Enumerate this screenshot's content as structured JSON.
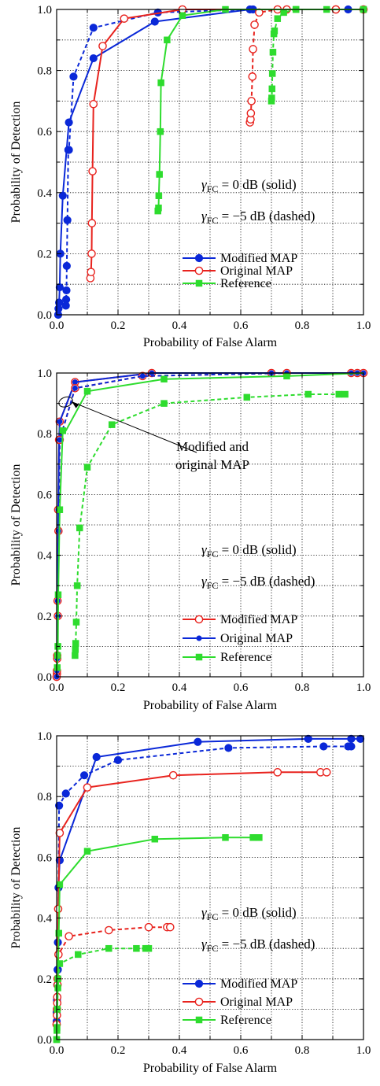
{
  "chart_data": [
    {
      "type": "line",
      "xlabel": "Probability of False Alarm",
      "ylabel": "Probability of Detection",
      "xlim": [
        0,
        1
      ],
      "ylim": [
        0,
        1
      ],
      "xticks": [
        "0.0",
        "0.2",
        "0.4",
        "0.6",
        "0.8",
        "1.0"
      ],
      "yticks": [
        "0.0",
        "0.2",
        "0.4",
        "0.6",
        "0.8",
        "1.0"
      ],
      "grid": true,
      "legend_position": "bottom-right",
      "legend": [
        {
          "name": "Modified MAP",
          "color": "#0a28d8",
          "marker": "filled-circle"
        },
        {
          "name": "Original MAP",
          "color": "#e8231e",
          "marker": "open-circle"
        },
        {
          "name": "Reference",
          "color": "#2edc2e",
          "marker": "filled-square"
        }
      ],
      "notes": [
        {
          "sym": "γ",
          "sub": "FC",
          "rest": " = 0 dB (solid)"
        },
        {
          "sym": "γ",
          "sub": "FC",
          "rest": " = −5 dB (dashed)"
        }
      ],
      "annotation": null,
      "series": [
        {
          "legend": 0,
          "dash": false,
          "x": [
            0.005,
            0.006,
            0.008,
            0.01,
            0.012,
            0.02,
            0.04,
            0.12,
            0.32,
            0.63,
            1.0
          ],
          "y": [
            0.0,
            0.02,
            0.04,
            0.09,
            0.2,
            0.39,
            0.63,
            0.84,
            0.96,
            1.0,
            1.0
          ]
        },
        {
          "legend": 0,
          "dash": true,
          "x": [
            0.03,
            0.031,
            0.032,
            0.033,
            0.035,
            0.038,
            0.04,
            0.055,
            0.12,
            0.33,
            0.64,
            0.95,
            1.0
          ],
          "y": [
            0.03,
            0.05,
            0.08,
            0.16,
            0.31,
            0.54,
            0.54,
            0.78,
            0.94,
            0.99,
            1.0,
            1.0,
            1.0
          ]
        },
        {
          "legend": 1,
          "dash": false,
          "x": [
            0.11,
            0.112,
            0.114,
            0.115,
            0.117,
            0.12,
            0.15,
            0.22,
            0.41,
            0.75,
            0.91,
            1.0
          ],
          "y": [
            0.12,
            0.14,
            0.2,
            0.3,
            0.47,
            0.69,
            0.88,
            0.97,
            1.0,
            1.0,
            1.0,
            1.0
          ]
        },
        {
          "legend": 1,
          "dash": true,
          "x": [
            0.63,
            0.632,
            0.633,
            0.635,
            0.638,
            0.64,
            0.645,
            0.66,
            0.72,
            0.91
          ],
          "y": [
            0.63,
            0.64,
            0.66,
            0.7,
            0.78,
            0.87,
            0.95,
            0.99,
            1.0,
            1.0
          ]
        },
        {
          "legend": 2,
          "dash": false,
          "x": [
            0.33,
            0.332,
            0.333,
            0.335,
            0.338,
            0.34,
            0.36,
            0.41,
            0.55,
            0.78,
            1.0
          ],
          "y": [
            0.34,
            0.35,
            0.39,
            0.46,
            0.6,
            0.76,
            0.9,
            0.98,
            1.0,
            1.0,
            1.0
          ]
        },
        {
          "legend": 2,
          "dash": true,
          "x": [
            0.7,
            0.701,
            0.702,
            0.703,
            0.705,
            0.708,
            0.71,
            0.72,
            0.74,
            0.78,
            0.88,
            1.0
          ],
          "y": [
            0.7,
            0.71,
            0.74,
            0.79,
            0.86,
            0.92,
            0.93,
            0.97,
            0.99,
            1.0,
            1.0,
            1.0
          ]
        }
      ]
    },
    {
      "type": "line",
      "xlabel": "Probability of False Alarm",
      "ylabel": "Probability of Detection",
      "xlim": [
        0,
        1
      ],
      "ylim": [
        0,
        1
      ],
      "xticks": [
        "0.0",
        "0.2",
        "0.4",
        "0.6",
        "0.8",
        "1.0"
      ],
      "yticks": [
        "0.0",
        "0.2",
        "0.4",
        "0.6",
        "0.8",
        "1.0"
      ],
      "grid": true,
      "legend_position": "bottom-right",
      "legend": [
        {
          "name": "Modified MAP",
          "color": "#e8231e",
          "marker": "open-circle"
        },
        {
          "name": "Original MAP",
          "color": "#0a28d8",
          "marker": "small-filled-circle"
        },
        {
          "name": "Reference",
          "color": "#2edc2e",
          "marker": "filled-square"
        }
      ],
      "notes": [
        {
          "sym": "γ",
          "sub": "FC",
          "rest": " = 0 dB (solid)"
        },
        {
          "sym": "γ",
          "sub": "FC",
          "rest": " = −5 dB (dashed)"
        }
      ],
      "annotation": {
        "lines": [
          "Modified and",
          "original MAP"
        ],
        "target": [
          0.045,
          0.91
        ]
      },
      "series": [
        {
          "legend": 0,
          "dash": false,
          "x": [
            0.0,
            0.001,
            0.002,
            0.003,
            0.005,
            0.008,
            0.01,
            0.06,
            0.31,
            0.7,
            0.96,
            1.0
          ],
          "y": [
            0.0,
            0.01,
            0.07,
            0.25,
            0.55,
            0.78,
            0.84,
            0.97,
            1.0,
            1.0,
            1.0,
            1.0
          ]
        },
        {
          "legend": 1,
          "dash": false,
          "x": [
            0.0,
            0.001,
            0.002,
            0.003,
            0.005,
            0.008,
            0.01,
            0.06,
            0.31,
            0.7,
            0.96,
            1.0
          ],
          "y": [
            0.0,
            0.01,
            0.07,
            0.25,
            0.55,
            0.78,
            0.84,
            0.97,
            1.0,
            1.0,
            1.0,
            1.0
          ]
        },
        {
          "legend": 0,
          "dash": true,
          "x": [
            0.0,
            0.001,
            0.002,
            0.004,
            0.006,
            0.01,
            0.06,
            0.28,
            0.75,
            0.98
          ],
          "y": [
            0.0,
            0.02,
            0.06,
            0.2,
            0.48,
            0.78,
            0.95,
            0.99,
            1.0,
            1.0
          ]
        },
        {
          "legend": 1,
          "dash": true,
          "x": [
            0.0,
            0.001,
            0.002,
            0.004,
            0.006,
            0.01,
            0.06,
            0.28,
            0.75,
            0.98
          ],
          "y": [
            0.0,
            0.02,
            0.06,
            0.2,
            0.48,
            0.78,
            0.95,
            0.99,
            1.0,
            1.0
          ]
        },
        {
          "legend": 2,
          "dash": false,
          "x": [
            0.002,
            0.003,
            0.004,
            0.005,
            0.01,
            0.02,
            0.03,
            0.1,
            0.35,
            0.75,
            1.0
          ],
          "y": [
            0.03,
            0.07,
            0.1,
            0.27,
            0.55,
            0.81,
            0.81,
            0.94,
            0.98,
            0.99,
            1.0
          ],
          "marked": [
            0,
            1,
            2,
            3,
            4,
            5,
            7,
            8,
            9
          ]
        },
        {
          "legend": 2,
          "dash": true,
          "x": [
            0.06,
            0.061,
            0.062,
            0.064,
            0.067,
            0.075,
            0.1,
            0.18,
            0.35,
            0.62,
            0.82,
            0.92,
            0.94
          ],
          "y": [
            0.07,
            0.09,
            0.11,
            0.18,
            0.3,
            0.49,
            0.69,
            0.83,
            0.9,
            0.92,
            0.93,
            0.93,
            0.93
          ]
        }
      ]
    },
    {
      "type": "line",
      "xlabel": "Probability of False Alarm",
      "ylabel": "Probability of Detection",
      "xlim": [
        0,
        1
      ],
      "ylim": [
        0,
        1
      ],
      "xticks": [
        "0.0",
        "0.2",
        "0.4",
        "0.6",
        "0.8",
        "1.0"
      ],
      "yticks": [
        "0.0",
        "0.2",
        "0.4",
        "0.6",
        "0.8",
        "1.0"
      ],
      "grid": true,
      "legend_position": "bottom-right",
      "legend": [
        {
          "name": "Modified MAP",
          "color": "#0a28d8",
          "marker": "filled-circle"
        },
        {
          "name": "Original MAP",
          "color": "#e8231e",
          "marker": "open-circle"
        },
        {
          "name": "Reference",
          "color": "#2edc2e",
          "marker": "filled-square"
        }
      ],
      "notes": [
        {
          "sym": "γ",
          "sub": "FC",
          "rest": " = 0 dB (solid)"
        },
        {
          "sym": "γ",
          "sub": "FC",
          "rest": " = −5 dB (dashed)"
        }
      ],
      "annotation": null,
      "series": [
        {
          "legend": 0,
          "dash": false,
          "x": [
            0.0,
            0.001,
            0.002,
            0.003,
            0.004,
            0.006,
            0.01,
            0.13,
            0.46,
            0.82,
            0.96,
            0.99
          ],
          "y": [
            0.09,
            0.13,
            0.18,
            0.23,
            0.32,
            0.5,
            0.59,
            0.93,
            0.98,
            0.99,
            0.99,
            0.99
          ],
          "marked": [
            0,
            1,
            2,
            3,
            4,
            5,
            6,
            7,
            8,
            9,
            10,
            11
          ]
        },
        {
          "legend": 0,
          "dash": true,
          "x": [
            0.0,
            0.001,
            0.002,
            0.004,
            0.008,
            0.03,
            0.09,
            0.2,
            0.56,
            0.87,
            0.95,
            0.96
          ],
          "y": [
            0.06,
            0.1,
            0.14,
            0.23,
            0.77,
            0.81,
            0.87,
            0.92,
            0.96,
            0.965,
            0.965,
            0.965
          ]
        },
        {
          "legend": 1,
          "dash": false,
          "x": [
            0.0,
            0.001,
            0.002,
            0.003,
            0.005,
            0.01,
            0.1,
            0.38,
            0.72,
            0.86,
            0.88
          ],
          "y": [
            0.05,
            0.1,
            0.14,
            0.2,
            0.43,
            0.68,
            0.83,
            0.87,
            0.88,
            0.88,
            0.88
          ]
        },
        {
          "legend": 1,
          "dash": true,
          "x": [
            0.0,
            0.001,
            0.002,
            0.003,
            0.006,
            0.04,
            0.17,
            0.3,
            0.36,
            0.37
          ],
          "y": [
            0.05,
            0.08,
            0.12,
            0.18,
            0.28,
            0.34,
            0.36,
            0.37,
            0.37,
            0.37
          ]
        },
        {
          "legend": 2,
          "dash": false,
          "x": [
            0.0,
            0.001,
            0.002,
            0.004,
            0.007,
            0.01,
            0.1,
            0.32,
            0.55,
            0.64,
            0.66
          ],
          "y": [
            0.0,
            0.03,
            0.1,
            0.2,
            0.35,
            0.51,
            0.62,
            0.66,
            0.665,
            0.665,
            0.665
          ]
        },
        {
          "legend": 2,
          "dash": true,
          "x": [
            0.0,
            0.001,
            0.002,
            0.004,
            0.01,
            0.07,
            0.17,
            0.26,
            0.29,
            0.3
          ],
          "y": [
            0.0,
            0.04,
            0.1,
            0.17,
            0.25,
            0.28,
            0.3,
            0.3,
            0.3,
            0.3
          ]
        }
      ]
    }
  ]
}
